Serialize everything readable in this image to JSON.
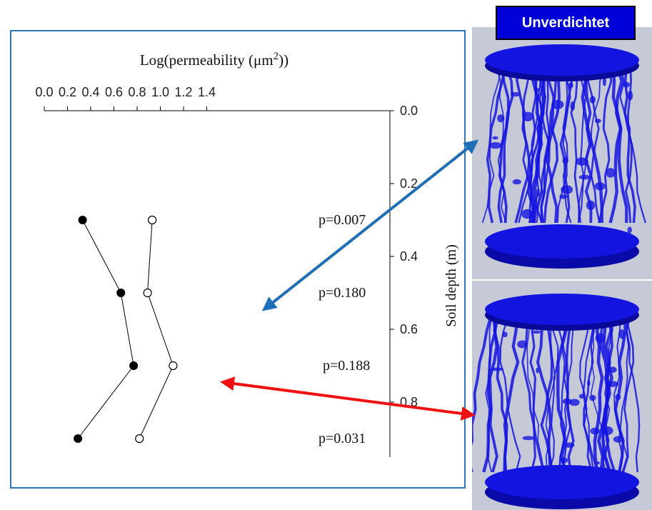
{
  "badge": {
    "label": "Unverdichtet",
    "color": "#0000d8"
  },
  "colors": {
    "frame": "#2e75b6",
    "arrow_top": "#1f6fb8",
    "arrow_bottom": "#ee1111",
    "sample": "#1414e0"
  },
  "chart_data": {
    "type": "line",
    "title": "",
    "xlabel": "Log(permeability (μm²))",
    "xlabel_main": "Log(permeability (μm",
    "xlabel_sup": "2",
    "xlabel_tail": "))",
    "ylabel": "Soil depth (m)",
    "xlim": [
      0.0,
      1.5
    ],
    "ylim": [
      0.0,
      0.95
    ],
    "x_ticks": [
      "0.0",
      "0.2",
      "0.4",
      "0.6",
      "0.8",
      "1.0",
      "1.2",
      "1.4"
    ],
    "y_ticks": [
      "0.0",
      "0.2",
      "0.4",
      "0.6",
      "0.8"
    ],
    "series": [
      {
        "marker": "filled",
        "x": [
          0.33,
          0.66,
          0.77,
          0.29
        ],
        "y": [
          0.3,
          0.5,
          0.7,
          0.9
        ]
      },
      {
        "marker": "open",
        "x": [
          0.93,
          0.89,
          1.11,
          0.82
        ],
        "y": [
          0.3,
          0.5,
          0.7,
          0.9
        ]
      }
    ],
    "annotations": [
      {
        "text": "p=0.007",
        "depth": 0.3
      },
      {
        "text": "p=0.180",
        "depth": 0.5
      },
      {
        "text": "p=0.188",
        "depth": 0.7
      },
      {
        "text": "p=0.031",
        "depth": 0.9
      }
    ]
  }
}
